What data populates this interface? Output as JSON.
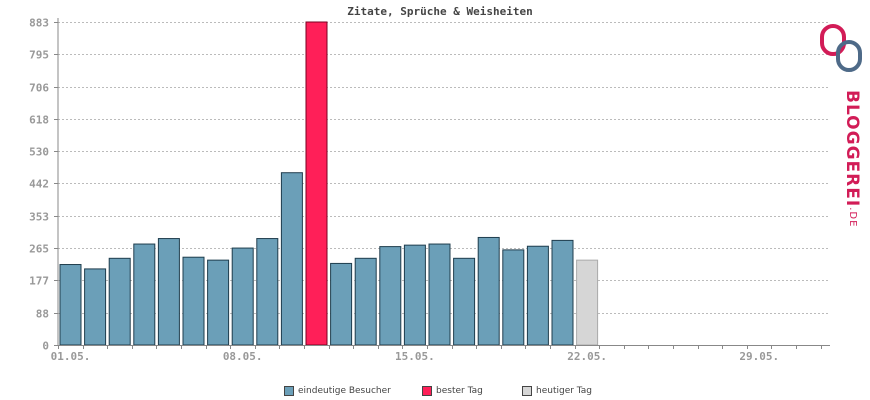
{
  "chart_data": {
    "type": "bar",
    "title": "Zitate, Sprüche & Weisheiten",
    "y_ticks": [
      "0",
      "88",
      "177",
      "265",
      "353",
      "442",
      "530",
      "618",
      "706",
      "795",
      "883"
    ],
    "ylim": [
      0,
      883
    ],
    "x_tick_labels": [
      "01.05.",
      "08.05.",
      "15.05.",
      "22.05.",
      "29.05."
    ],
    "categories": [
      "01.05.",
      "02.05.",
      "03.05.",
      "04.05.",
      "05.05.",
      "06.05.",
      "07.05.",
      "08.05.",
      "09.05.",
      "10.05.",
      "11.05.",
      "12.05.",
      "13.05.",
      "14.05.",
      "15.05.",
      "16.05.",
      "17.05.",
      "18.05.",
      "19.05.",
      "20.05.",
      "21.05.",
      "22.05.",
      "23.05.",
      "24.05.",
      "25.05.",
      "26.05.",
      "27.05.",
      "28.05.",
      "29.05.",
      "30.05.",
      "31.05."
    ],
    "values": [
      220,
      208,
      237,
      276,
      291,
      240,
      232,
      265,
      291,
      471,
      883,
      223,
      237,
      269,
      273,
      276,
      237,
      294,
      260,
      270,
      286,
      232,
      null,
      null,
      null,
      null,
      null,
      null,
      null,
      null,
      null
    ],
    "best_index": 10,
    "today_index": 21,
    "grid": true,
    "colors": {
      "normal": "#6b9fb8",
      "best": "#ff1f58",
      "today": "#d6d6d6",
      "grid": "#bbbbbb",
      "axis": "#888888"
    }
  },
  "legend": {
    "unique_visitors": "eindeutige Besucher",
    "best_day": "bester Tag",
    "today": "heutiger Tag"
  },
  "logo": {
    "main": "BLOGGEREI",
    "suffix": ".DE"
  }
}
